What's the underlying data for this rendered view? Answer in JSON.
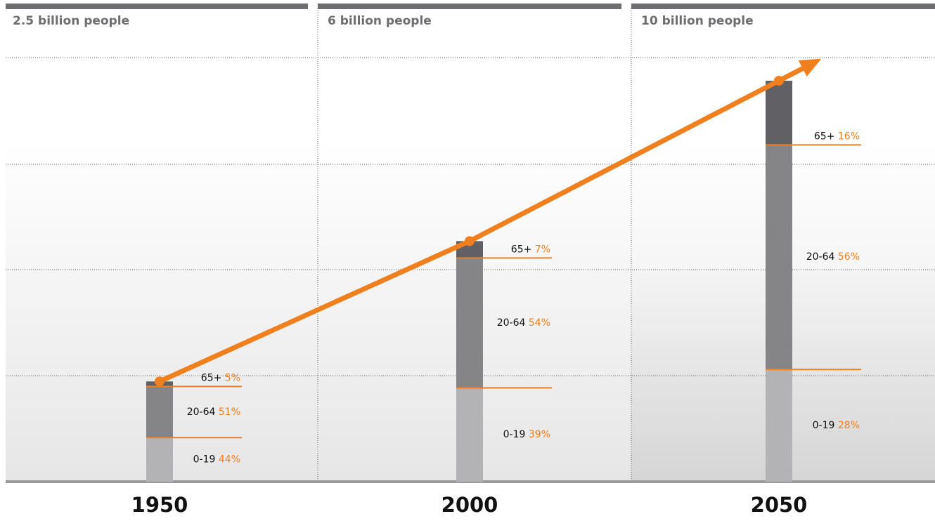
{
  "chart_data": {
    "type": "stacked-bar",
    "categories": [
      "1950",
      "2000",
      "2050"
    ],
    "population": [
      2.5,
      6,
      10
    ],
    "population_labels": [
      "2.5 billion people",
      "6 billion people",
      "10 billion people"
    ],
    "series": [
      {
        "name": "0-19",
        "color": "#b3b2b4",
        "values": [
          44,
          39,
          28
        ],
        "value_labels": [
          "44%",
          "39%",
          "28%"
        ]
      },
      {
        "name": "20-64",
        "color": "#858487",
        "values": [
          51,
          54,
          56
        ],
        "value_labels": [
          "51%",
          "54%",
          "56%"
        ]
      },
      {
        "name": "65+",
        "color": "#616064",
        "values": [
          5,
          7,
          16
        ],
        "value_labels": [
          "5%",
          "7%",
          "16%"
        ]
      }
    ],
    "line_color": "#f07f1e",
    "label_color": "#f07f1e"
  }
}
